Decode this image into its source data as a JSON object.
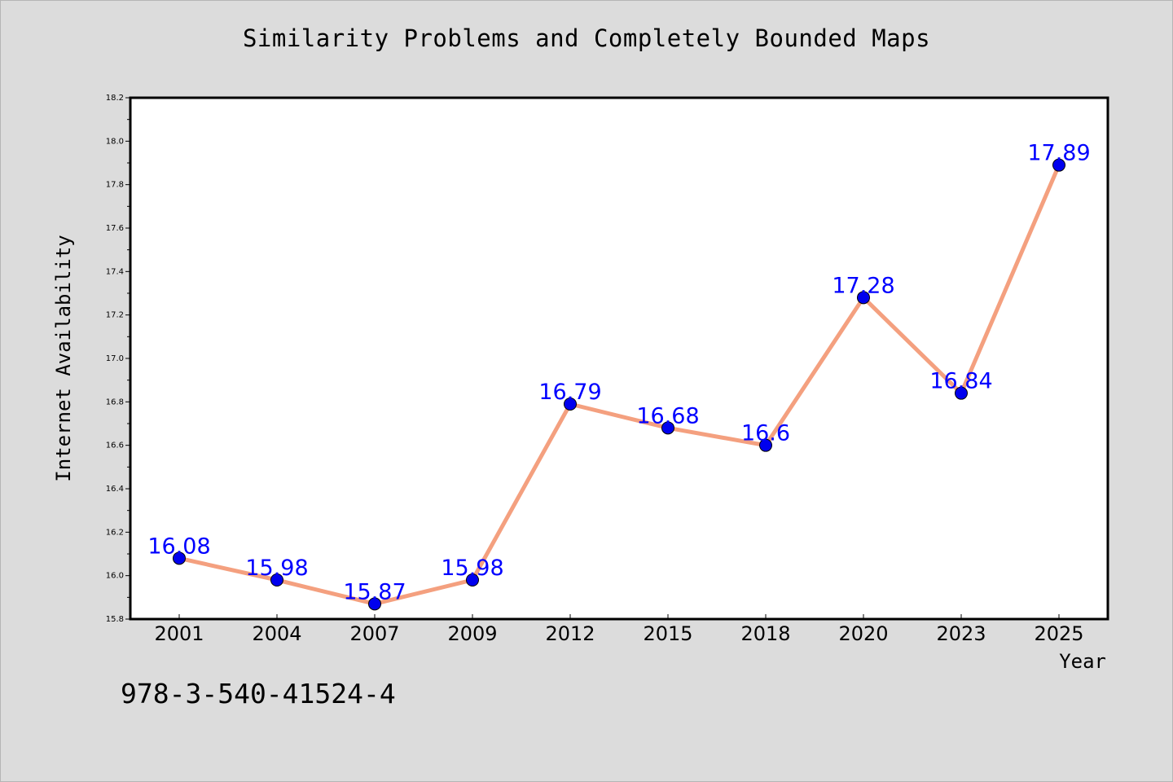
{
  "chart_data": {
    "type": "line",
    "title": "Similarity Problems and Completely Bounded Maps",
    "xlabel": "Year",
    "ylabel": "Internet Availability",
    "categories": [
      "2001",
      "2004",
      "2007",
      "2009",
      "2012",
      "2015",
      "2018",
      "2020",
      "2023",
      "2025"
    ],
    "values": [
      16.08,
      15.98,
      15.87,
      15.98,
      16.79,
      16.68,
      16.6,
      17.28,
      16.84,
      17.89
    ],
    "data_labels": [
      "16.08",
      "15.98",
      "15.87",
      "15.98",
      "16.79",
      "16.68",
      "16.6",
      "17.28",
      "16.84",
      "17.89"
    ],
    "ylim": [
      15.8,
      18.2
    ],
    "yticks": [
      "15.8",
      "16.0",
      "16.2",
      "16.4",
      "16.6",
      "16.8",
      "17.0",
      "17.2",
      "17.4",
      "17.6",
      "17.8",
      "18.0",
      "18.2"
    ],
    "grid": false,
    "legend": "none",
    "line_color": "#f4a07f",
    "marker_color": "#0000ee",
    "label_color": "#0000ff"
  },
  "footer": {
    "isbn": "978-3-540-41524-4"
  }
}
